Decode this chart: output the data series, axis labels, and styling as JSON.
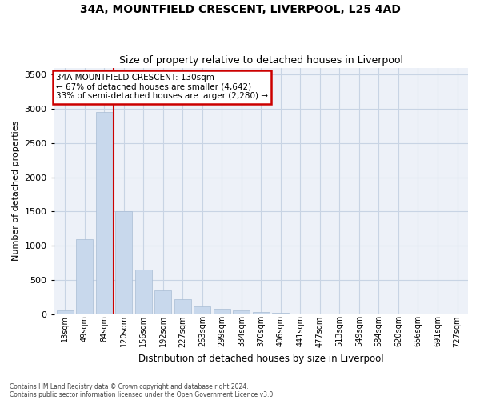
{
  "title1": "34A, MOUNTFIELD CRESCENT, LIVERPOOL, L25 4AD",
  "title2": "Size of property relative to detached houses in Liverpool",
  "xlabel": "Distribution of detached houses by size in Liverpool",
  "ylabel": "Number of detached properties",
  "categories": [
    "13sqm",
    "49sqm",
    "84sqm",
    "120sqm",
    "156sqm",
    "192sqm",
    "227sqm",
    "263sqm",
    "299sqm",
    "334sqm",
    "370sqm",
    "406sqm",
    "441sqm",
    "477sqm",
    "513sqm",
    "549sqm",
    "584sqm",
    "620sqm",
    "656sqm",
    "691sqm",
    "727sqm"
  ],
  "values": [
    50,
    1100,
    2950,
    1500,
    650,
    350,
    220,
    110,
    80,
    50,
    30,
    15,
    5,
    2,
    1,
    0,
    0,
    0,
    0,
    0,
    0
  ],
  "bar_color": "#c8d8ec",
  "bar_edge_color": "#a8bcd4",
  "grid_color": "#c8d4e4",
  "background_color": "#edf1f8",
  "red_line_x": 2.5,
  "annotation_line1": "34A MOUNTFIELD CRESCENT: 130sqm",
  "annotation_line2": "← 67% of detached houses are smaller (4,642)",
  "annotation_line3": "33% of semi-detached houses are larger (2,280) →",
  "annotation_box_facecolor": "#ffffff",
  "annotation_box_edgecolor": "#cc0000",
  "ylim": [
    0,
    3600
  ],
  "yticks": [
    0,
    500,
    1000,
    1500,
    2000,
    2500,
    3000,
    3500
  ],
  "footer1": "Contains HM Land Registry data © Crown copyright and database right 2024.",
  "footer2": "Contains public sector information licensed under the Open Government Licence v3.0."
}
